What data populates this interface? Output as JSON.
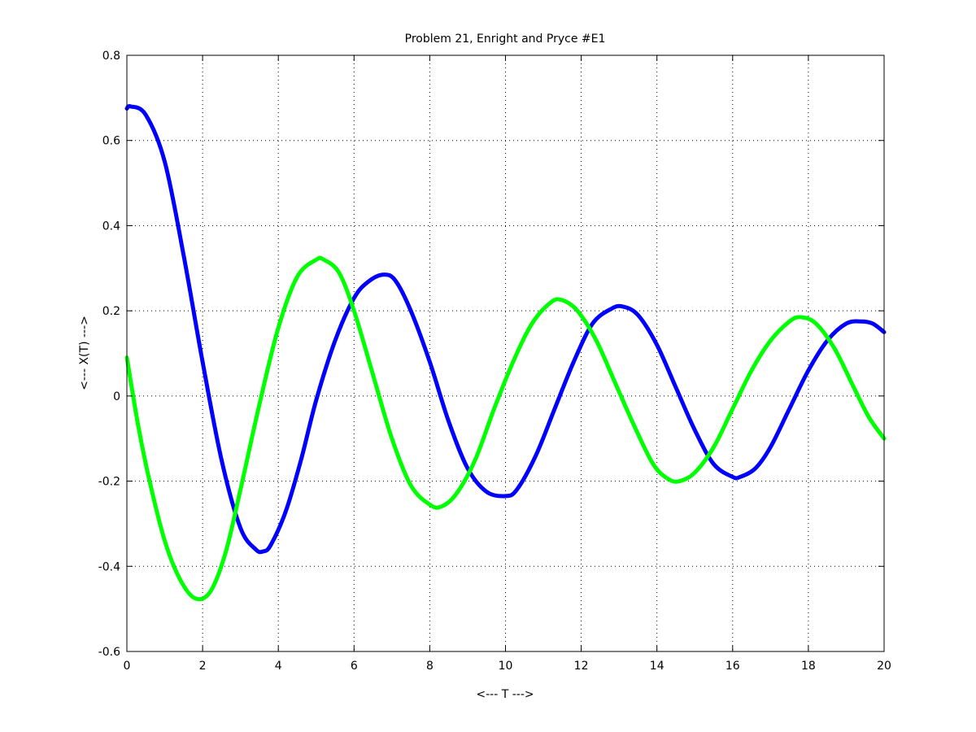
{
  "chart_data": {
    "type": "line",
    "title": "Problem 21, Enright and Pryce #E1",
    "xlabel": "<--- T --->",
    "ylabel": "<--- X(T) --->",
    "xlim": [
      0,
      20
    ],
    "ylim": [
      -0.6,
      0.8
    ],
    "xticks": [
      0,
      2,
      4,
      6,
      8,
      10,
      12,
      14,
      16,
      18,
      20
    ],
    "yticks": [
      -0.6,
      -0.4,
      -0.2,
      0,
      0.2,
      0.4,
      0.6,
      0.8
    ],
    "xtick_labels": [
      "0",
      "2",
      "4",
      "6",
      "8",
      "10",
      "12",
      "14",
      "16",
      "18",
      "20"
    ],
    "ytick_labels": [
      "-0.6",
      "-0.4",
      "-0.2",
      "0",
      "0.2",
      "0.4",
      "0.6",
      "0.8"
    ],
    "grid": true,
    "legend": "none",
    "series": [
      {
        "color": "#0000ff",
        "x": [
          0,
          0.1,
          0.5,
          1,
          1.5,
          2,
          2.5,
          3,
          3.4,
          3.6,
          3.8,
          4.2,
          4.6,
          5,
          5.5,
          6,
          6.4,
          6.8,
          7.1,
          7.5,
          8,
          8.5,
          9,
          9.5,
          10,
          10.3,
          10.8,
          11.3,
          11.8,
          12.3,
          12.8,
          13.1,
          13.5,
          14,
          14.5,
          15,
          15.5,
          16,
          16.2,
          16.6,
          17,
          17.5,
          18,
          18.5,
          19,
          19.4,
          19.7,
          20
        ],
        "y": [
          0.675,
          0.68,
          0.66,
          0.55,
          0.33,
          0.08,
          -0.15,
          -0.31,
          -0.36,
          -0.365,
          -0.35,
          -0.27,
          -0.15,
          -0.01,
          0.13,
          0.23,
          0.27,
          0.285,
          0.27,
          0.2,
          0.08,
          -0.06,
          -0.17,
          -0.225,
          -0.235,
          -0.22,
          -0.14,
          -0.03,
          0.08,
          0.17,
          0.205,
          0.21,
          0.19,
          0.12,
          0.02,
          -0.08,
          -0.16,
          -0.19,
          -0.19,
          -0.17,
          -0.12,
          -0.03,
          0.06,
          0.13,
          0.17,
          0.175,
          0.17,
          0.15
        ]
      },
      {
        "color": "#00ff00",
        "x": [
          0,
          0.3,
          0.6,
          1,
          1.4,
          1.8,
          2.2,
          2.6,
          3,
          3.5,
          4,
          4.5,
          5,
          5.2,
          5.6,
          6,
          6.5,
          7,
          7.5,
          8,
          8.3,
          8.7,
          9.2,
          9.7,
          10.2,
          10.7,
          11.2,
          11.5,
          11.9,
          12.4,
          12.9,
          13.4,
          13.9,
          14.3,
          14.6,
          15,
          15.5,
          16,
          16.5,
          17,
          17.5,
          17.8,
          18.2,
          18.7,
          19.2,
          19.6,
          20
        ],
        "y": [
          0.09,
          -0.07,
          -0.2,
          -0.34,
          -0.43,
          -0.475,
          -0.46,
          -0.37,
          -0.22,
          -0.02,
          0.16,
          0.28,
          0.32,
          0.32,
          0.29,
          0.2,
          0.05,
          -0.1,
          -0.21,
          -0.255,
          -0.26,
          -0.23,
          -0.15,
          -0.03,
          0.08,
          0.17,
          0.22,
          0.225,
          0.2,
          0.13,
          0.03,
          -0.07,
          -0.16,
          -0.195,
          -0.2,
          -0.18,
          -0.12,
          -0.03,
          0.06,
          0.13,
          0.175,
          0.185,
          0.17,
          0.11,
          0.02,
          -0.05,
          -0.1
        ]
      }
    ]
  }
}
